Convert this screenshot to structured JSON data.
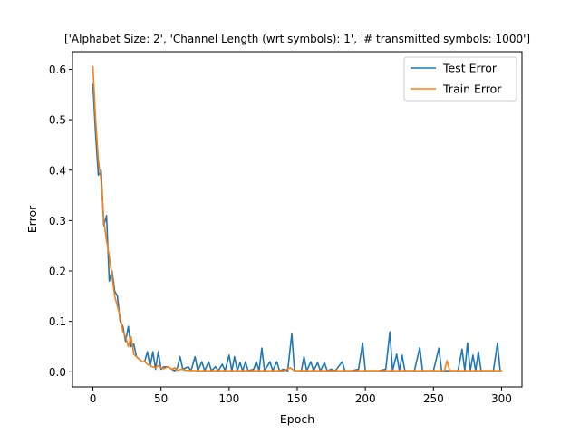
{
  "chart_data": {
    "type": "line",
    "title": "['Alphabet Size: 2', 'Channel Length (wrt symbols): 1', '# transmitted symbols: 1000']",
    "xlabel": "Epoch",
    "ylabel": "Error",
    "xlim": [
      -15,
      315
    ],
    "ylim": [
      -0.03,
      0.635
    ],
    "xticks": [
      "0",
      "50",
      "100",
      "150",
      "200",
      "250",
      "300"
    ],
    "yticks": [
      "0.0",
      "0.1",
      "0.2",
      "0.3",
      "0.4",
      "0.5",
      "0.6"
    ],
    "legend_position": "top-right",
    "colors": {
      "test": "#1f77b4",
      "train": "#ff7f0e"
    },
    "series": [
      {
        "name": "Test Error",
        "color": "#1f77b4",
        "points": [
          [
            0,
            0.57
          ],
          [
            2,
            0.47
          ],
          [
            4,
            0.39
          ],
          [
            6,
            0.4
          ],
          [
            8,
            0.29
          ],
          [
            10,
            0.31
          ],
          [
            12,
            0.18
          ],
          [
            14,
            0.2
          ],
          [
            16,
            0.16
          ],
          [
            18,
            0.15
          ],
          [
            20,
            0.1
          ],
          [
            22,
            0.09
          ],
          [
            24,
            0.06
          ],
          [
            26,
            0.09
          ],
          [
            28,
            0.05
          ],
          [
            30,
            0.055
          ],
          [
            32,
            0.03
          ],
          [
            34,
            0.025
          ],
          [
            36,
            0.02
          ],
          [
            38,
            0.02
          ],
          [
            40,
            0.04
          ],
          [
            42,
            0.01
          ],
          [
            44,
            0.04
          ],
          [
            46,
            0.005
          ],
          [
            48,
            0.04
          ],
          [
            50,
            0.005
          ],
          [
            52,
            0.01
          ],
          [
            55,
            0.01
          ],
          [
            58,
            0.005
          ],
          [
            60,
            0.002
          ],
          [
            62,
            0.008
          ],
          [
            64,
            0.03
          ],
          [
            66,
            0.005
          ],
          [
            70,
            0.01
          ],
          [
            72,
            0.002
          ],
          [
            75,
            0.03
          ],
          [
            77,
            0.002
          ],
          [
            80,
            0.02
          ],
          [
            82,
            0.002
          ],
          [
            85,
            0.02
          ],
          [
            87,
            0.002
          ],
          [
            90,
            0.01
          ],
          [
            92,
            0.002
          ],
          [
            95,
            0.015
          ],
          [
            97,
            0.002
          ],
          [
            100,
            0.033
          ],
          [
            102,
            0.002
          ],
          [
            104,
            0.03
          ],
          [
            106,
            0.002
          ],
          [
            108,
            0.018
          ],
          [
            110,
            0.002
          ],
          [
            112,
            0.02
          ],
          [
            114,
            0.002
          ],
          [
            118,
            0.005
          ],
          [
            120,
            0.02
          ],
          [
            122,
            0.002
          ],
          [
            124,
            0.047
          ],
          [
            126,
            0.002
          ],
          [
            130,
            0.02
          ],
          [
            132,
            0.002
          ],
          [
            135,
            0.02
          ],
          [
            137,
            0.002
          ],
          [
            140,
            0.005
          ],
          [
            143,
            0.002
          ],
          [
            146,
            0.075
          ],
          [
            148,
            0.002
          ],
          [
            150,
            0.002
          ],
          [
            153,
            0.002
          ],
          [
            155,
            0.03
          ],
          [
            157,
            0.002
          ],
          [
            160,
            0.02
          ],
          [
            162,
            0.002
          ],
          [
            165,
            0.018
          ],
          [
            167,
            0.002
          ],
          [
            170,
            0.018
          ],
          [
            172,
            0.002
          ],
          [
            175,
            0.005
          ],
          [
            178,
            0.002
          ],
          [
            183,
            0.02
          ],
          [
            185,
            0.002
          ],
          [
            190,
            0.002
          ],
          [
            195,
            0.005
          ],
          [
            198,
            0.057
          ],
          [
            200,
            0.002
          ],
          [
            205,
            0.002
          ],
          [
            210,
            0.002
          ],
          [
            215,
            0.005
          ],
          [
            218,
            0.079
          ],
          [
            220,
            0.002
          ],
          [
            223,
            0.035
          ],
          [
            225,
            0.002
          ],
          [
            227,
            0.033
          ],
          [
            229,
            0.002
          ],
          [
            232,
            0.002
          ],
          [
            236,
            0.002
          ],
          [
            240,
            0.048
          ],
          [
            242,
            0.002
          ],
          [
            246,
            0.002
          ],
          [
            250,
            0.002
          ],
          [
            254,
            0.047
          ],
          [
            256,
            0.002
          ],
          [
            260,
            0.002
          ],
          [
            264,
            0.002
          ],
          [
            268,
            0.002
          ],
          [
            271,
            0.045
          ],
          [
            273,
            0.002
          ],
          [
            275,
            0.057
          ],
          [
            277,
            0.002
          ],
          [
            279,
            0.033
          ],
          [
            281,
            0.002
          ],
          [
            283,
            0.04
          ],
          [
            285,
            0.002
          ],
          [
            290,
            0.002
          ],
          [
            294,
            0.002
          ],
          [
            297,
            0.057
          ],
          [
            299,
            0.002
          ]
        ]
      },
      {
        "name": "Train Error",
        "color": "#ff7f0e",
        "points": [
          [
            0,
            0.605
          ],
          [
            2,
            0.5
          ],
          [
            4,
            0.42
          ],
          [
            6,
            0.38
          ],
          [
            8,
            0.3
          ],
          [
            10,
            0.26
          ],
          [
            12,
            0.23
          ],
          [
            14,
            0.19
          ],
          [
            16,
            0.15
          ],
          [
            18,
            0.13
          ],
          [
            20,
            0.11
          ],
          [
            22,
            0.08
          ],
          [
            24,
            0.07
          ],
          [
            26,
            0.05
          ],
          [
            28,
            0.07
          ],
          [
            30,
            0.035
          ],
          [
            32,
            0.03
          ],
          [
            34,
            0.025
          ],
          [
            36,
            0.02
          ],
          [
            38,
            0.02
          ],
          [
            40,
            0.015
          ],
          [
            42,
            0.012
          ],
          [
            44,
            0.01
          ],
          [
            46,
            0.008
          ],
          [
            48,
            0.012
          ],
          [
            50,
            0.008
          ],
          [
            52,
            0.006
          ],
          [
            55,
            0.01
          ],
          [
            58,
            0.005
          ],
          [
            60,
            0.008
          ],
          [
            62,
            0.003
          ],
          [
            65,
            0.005
          ],
          [
            68,
            0.003
          ],
          [
            72,
            0.003
          ],
          [
            76,
            0.002
          ],
          [
            80,
            0.002
          ],
          [
            85,
            0.002
          ],
          [
            90,
            0.002
          ],
          [
            95,
            0.002
          ],
          [
            100,
            0.002
          ],
          [
            105,
            0.002
          ],
          [
            110,
            0.002
          ],
          [
            115,
            0.002
          ],
          [
            120,
            0.002
          ],
          [
            125,
            0.002
          ],
          [
            130,
            0.002
          ],
          [
            135,
            0.002
          ],
          [
            140,
            0.002
          ],
          [
            145,
            0.008
          ],
          [
            148,
            0.002
          ],
          [
            155,
            0.002
          ],
          [
            160,
            0.002
          ],
          [
            165,
            0.002
          ],
          [
            170,
            0.002
          ],
          [
            175,
            0.002
          ],
          [
            180,
            0.002
          ],
          [
            190,
            0.002
          ],
          [
            200,
            0.002
          ],
          [
            210,
            0.002
          ],
          [
            220,
            0.002
          ],
          [
            230,
            0.002
          ],
          [
            240,
            0.002
          ],
          [
            250,
            0.002
          ],
          [
            258,
            0.002
          ],
          [
            260,
            0.022
          ],
          [
            262,
            0.002
          ],
          [
            270,
            0.002
          ],
          [
            280,
            0.002
          ],
          [
            290,
            0.002
          ],
          [
            300,
            0.002
          ]
        ]
      }
    ]
  }
}
